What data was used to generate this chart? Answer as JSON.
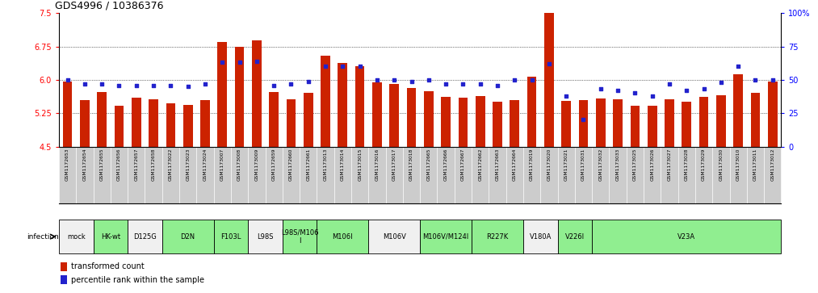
{
  "title": "GDS4996 / 10386376",
  "gsm_labels": [
    "GSM1172653",
    "GSM1172654",
    "GSM1172655",
    "GSM1172656",
    "GSM1172657",
    "GSM1172658",
    "GSM1173022",
    "GSM1173023",
    "GSM1173024",
    "GSM1173007",
    "GSM1173008",
    "GSM1173009",
    "GSM1172659",
    "GSM1172660",
    "GSM1172661",
    "GSM1173013",
    "GSM1173014",
    "GSM1173015",
    "GSM1173016",
    "GSM1173017",
    "GSM1173018",
    "GSM1172665",
    "GSM1172666",
    "GSM1172667",
    "GSM1172662",
    "GSM1172663",
    "GSM1172664",
    "GSM1173019",
    "GSM1173020",
    "GSM1173021",
    "GSM1173031",
    "GSM1173032",
    "GSM1173033",
    "GSM1173025",
    "GSM1173026",
    "GSM1173027",
    "GSM1173028",
    "GSM1173029",
    "GSM1173030",
    "GSM1173010",
    "GSM1173011",
    "GSM1173012"
  ],
  "bar_values": [
    5.97,
    5.55,
    5.72,
    5.42,
    5.6,
    5.57,
    5.47,
    5.43,
    5.55,
    6.85,
    6.75,
    6.88,
    5.72,
    5.57,
    5.7,
    6.55,
    6.38,
    6.3,
    5.95,
    5.9,
    5.82,
    5.75,
    5.62,
    5.6,
    5.63,
    5.5,
    5.55,
    6.07,
    7.75,
    5.52,
    5.55,
    5.58,
    5.57,
    5.42,
    5.42,
    5.57,
    5.5,
    5.62,
    5.65,
    6.12,
    5.7,
    5.97
  ],
  "percentile_values": [
    50,
    47,
    47,
    46,
    46,
    46,
    46,
    45,
    47,
    63,
    63,
    64,
    46,
    47,
    49,
    60,
    60,
    60,
    50,
    50,
    49,
    50,
    47,
    47,
    47,
    46,
    50,
    50,
    62,
    38,
    20,
    43,
    42,
    40,
    38,
    47,
    42,
    43,
    48,
    60,
    50,
    50
  ],
  "groups": [
    {
      "label": "mock",
      "start": 0,
      "end": 1,
      "green": false
    },
    {
      "label": "HK-wt",
      "start": 2,
      "end": 3,
      "green": true
    },
    {
      "label": "D125G",
      "start": 4,
      "end": 5,
      "green": false
    },
    {
      "label": "D2N",
      "start": 6,
      "end": 8,
      "green": true
    },
    {
      "label": "F103L",
      "start": 9,
      "end": 10,
      "green": true
    },
    {
      "label": "L98S",
      "start": 11,
      "end": 12,
      "green": false
    },
    {
      "label": "L98S/M106\nI",
      "start": 13,
      "end": 14,
      "green": true
    },
    {
      "label": "M106I",
      "start": 15,
      "end": 17,
      "green": true
    },
    {
      "label": "M106V",
      "start": 18,
      "end": 20,
      "green": false
    },
    {
      "label": "M106V/M124I",
      "start": 21,
      "end": 23,
      "green": true
    },
    {
      "label": "R227K",
      "start": 24,
      "end": 26,
      "green": true
    },
    {
      "label": "V180A",
      "start": 27,
      "end": 28,
      "green": false
    },
    {
      "label": "V226I",
      "start": 29,
      "end": 30,
      "green": true
    },
    {
      "label": "V23A",
      "start": 31,
      "end": 41,
      "green": true
    }
  ],
  "ylim_left": [
    4.5,
    7.5
  ],
  "yticks_left": [
    4.5,
    5.25,
    6.0,
    6.75,
    7.5
  ],
  "ylim_right": [
    0,
    100
  ],
  "yticks_right": [
    0,
    25,
    50,
    75,
    100
  ],
  "bar_color": "#cc2200",
  "dot_color": "#2222cc",
  "grid_lines": [
    5.25,
    6.0,
    6.75
  ],
  "bar_bottom": 4.5,
  "fig_width": 10.13,
  "fig_height": 3.63
}
